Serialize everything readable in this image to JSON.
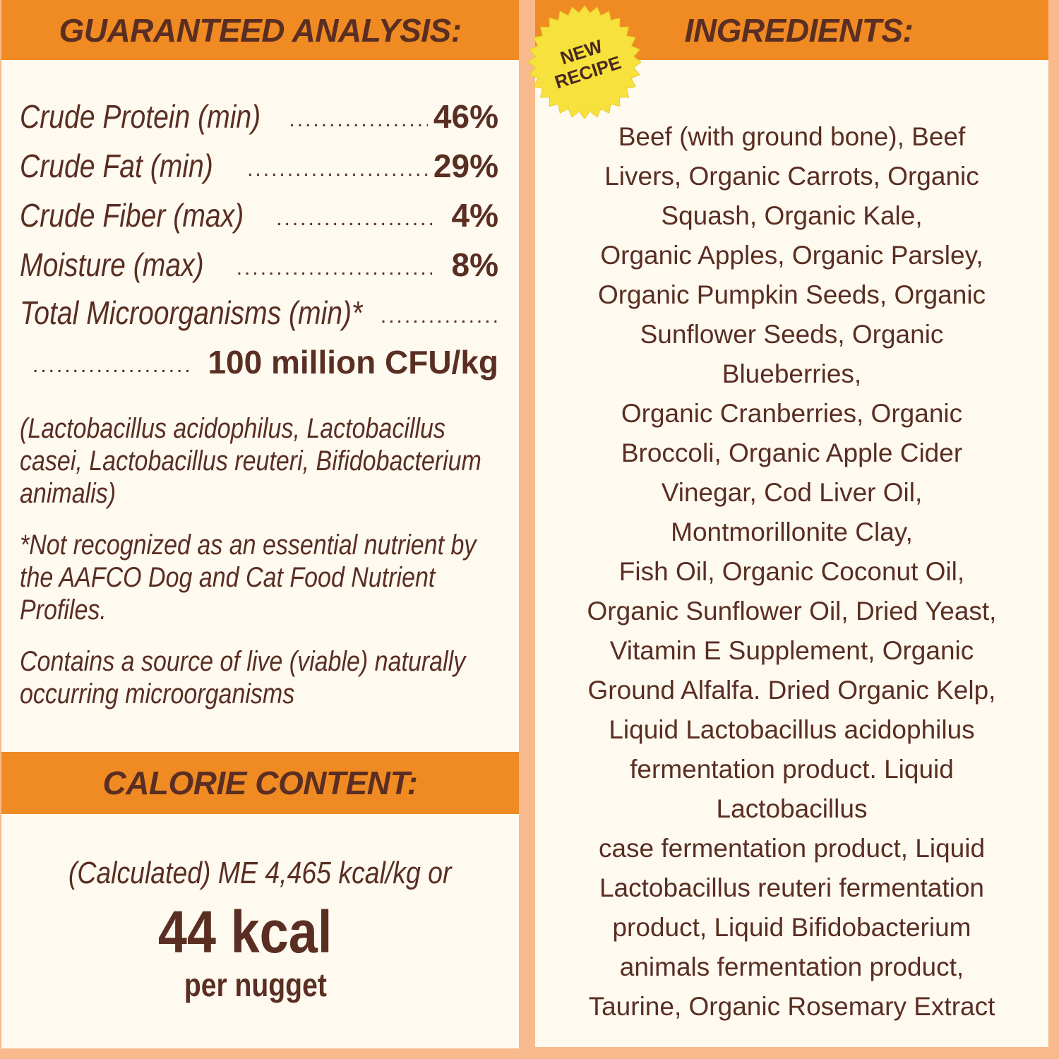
{
  "colors": {
    "background": "#f8b98c",
    "panel": "#fffaf0",
    "header": "#f08a22",
    "text": "#5a2e22",
    "badge": "#f7e13c"
  },
  "analysis": {
    "title": "GUARANTEED ANALYSIS:",
    "rows": [
      {
        "label": "Crude Protein (min)",
        "value": "46%"
      },
      {
        "label": "Crude Fat (min)",
        "value": "29%"
      },
      {
        "label": "Crude Fiber (max)",
        "value": "4%"
      },
      {
        "label": "Moisture (max)",
        "value": "8%"
      },
      {
        "label": "Total Microorganisms (min)*",
        "value": ""
      },
      {
        "label": "",
        "value": "100 million CFU/kg"
      }
    ],
    "strains": [
      "(Lactobacillus acidophilus, Lactobacillus",
      "casei, Lactobacillus reuteri, Bifidobacterium",
      "animalis)"
    ],
    "footnote": [
      "*Not recognized as an essential nutrient by",
      "the AAFCO Dog and Cat Food Nutrient",
      "Profiles."
    ],
    "live": [
      "Contains a source of live (viable) naturally",
      "occurring microorganisms"
    ]
  },
  "calorie": {
    "title": "CALORIE CONTENT:",
    "calculated": "(Calculated) ME 4,465 kcal/kg or",
    "big": "44 kcal",
    "per": "per nugget"
  },
  "badge": {
    "line1": "NEW",
    "line2": "RECIPE"
  },
  "ingredients": {
    "title": "INGREDIENTS:",
    "lines": [
      "Beef (with ground bone), Beef",
      "Livers, Organic Carrots, Organic",
      "Squash, Organic Kale,",
      "Organic Apples, Organic Parsley,",
      "Organic Pumpkin Seeds, Organic",
      "Sunflower Seeds, Organic",
      "Blueberries,",
      "Organic Cranberries, Organic",
      "Broccoli, Organic Apple Cider",
      "Vinegar, Cod Liver Oil,",
      "Montmorillonite Clay,",
      "Fish Oil, Organic Coconut Oil,",
      "Organic Sunflower Oil, Dried Yeast,",
      "Vitamin E Supplement, Organic",
      "Ground Alfalfa. Dried Organic Kelp,",
      "Liquid Lactobacillus acidophilus",
      "fermentation product. Liquid",
      "Lactobacillus",
      "case fermentation product, Liquid",
      "Lactobacillus reuteri fermentation",
      "product, Liquid Bifidobacterium",
      "animals fermentation product,",
      "Taurine, Organic Rosemary Extract"
    ]
  }
}
